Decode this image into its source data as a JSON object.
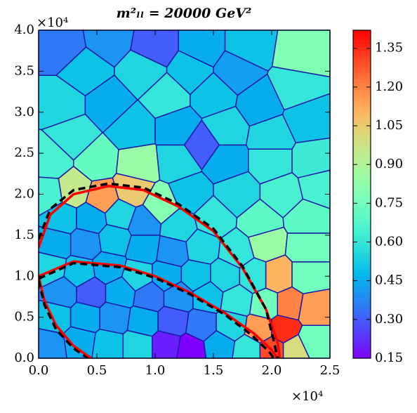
{
  "chart_data": {
    "type": "voronoi",
    "title": "m²ₗₗ = 20000 GeV²",
    "x_offset_text": "×10⁴",
    "y_offset_text": "×10⁴",
    "xlim": [
      0,
      25000
    ],
    "ylim": [
      0,
      40000
    ],
    "xticks": [
      {
        "value": 0,
        "label": "0.0"
      },
      {
        "value": 5000,
        "label": "0.5"
      },
      {
        "value": 10000,
        "label": "1.0"
      },
      {
        "value": 15000,
        "label": "1.5"
      },
      {
        "value": 20000,
        "label": "2.0"
      },
      {
        "value": 25000,
        "label": "2.5"
      }
    ],
    "yticks": [
      {
        "value": 0,
        "label": "0.0"
      },
      {
        "value": 5000,
        "label": "0.5"
      },
      {
        "value": 10000,
        "label": "1.0"
      },
      {
        "value": 15000,
        "label": "1.5"
      },
      {
        "value": 20000,
        "label": "2.0"
      },
      {
        "value": 25000,
        "label": "2.5"
      },
      {
        "value": 30000,
        "label": "3.0"
      },
      {
        "value": 35000,
        "label": "3.5"
      },
      {
        "value": 40000,
        "label": "4.0"
      }
    ],
    "colormap": "rainbow",
    "edge_color": "#1a1aa6",
    "clim": [
      0.15,
      1.42
    ],
    "cticks": [
      0.15,
      {
        "value": 0.3,
        "label": "0.30"
      },
      0.45,
      {
        "value": 0.6,
        "label": "0.60"
      },
      0.75,
      {
        "value": 0.9,
        "label": "0.90"
      },
      1.05,
      {
        "value": 1.2,
        "label": "1.20"
      },
      1.35
    ],
    "cells": {
      "x": [
        2000,
        6000,
        10000,
        14000,
        18000,
        22500,
        4000,
        9000,
        13000,
        17000,
        22000,
        2000,
        6000,
        11000,
        15000,
        19000,
        23000,
        3000,
        8000,
        12000,
        16000,
        20000,
        14000,
        1000,
        5000,
        8500,
        12000,
        16000,
        20000,
        23500,
        800,
        3000,
        5500,
        8000,
        10500,
        13000,
        17000,
        21000,
        24000,
        2000,
        4500,
        7000,
        9000,
        12000,
        15000,
        19000,
        23000,
        1500,
        4000,
        6500,
        9000,
        11500,
        14000,
        17000,
        19500,
        23000,
        1000,
        3500,
        6000,
        8500,
        11000,
        13500,
        16000,
        18500,
        20500,
        23000,
        2000,
        4500,
        7000,
        9500,
        12000,
        14500,
        17000,
        19500,
        21500,
        23500,
        1500,
        4000,
        6500,
        9000,
        11500,
        14000,
        16500,
        19000,
        21000,
        23500,
        1000,
        3500,
        6000,
        8500,
        11000,
        13000,
        15500,
        18000,
        20000,
        22000
      ],
      "y": [
        38000,
        39000,
        38000,
        38000,
        38000,
        37000,
        35000,
        35000,
        35000,
        35000,
        33000,
        31000,
        31000,
        32000,
        32000,
        31000,
        29000,
        27000,
        28000,
        28000,
        28000,
        27000,
        26000,
        24000,
        24000,
        23500,
        24000,
        24000,
        24000,
        24000,
        20000,
        20500,
        19500,
        20500,
        18500,
        20000,
        20000,
        20000,
        21000,
        17000,
        17000,
        17500,
        16500,
        16000,
        17000,
        16500,
        17000,
        14000,
        14000,
        14500,
        13500,
        13000,
        13500,
        13000,
        14000,
        13500,
        11000,
        10500,
        11000,
        10000,
        10000,
        10000,
        10000,
        10000,
        10000,
        10000,
        8000,
        8000,
        8000,
        7500,
        7500,
        7500,
        7000,
        6500,
        6500,
        6000,
        5000,
        5000,
        5000,
        4500,
        4500,
        4000,
        4000,
        3500,
        3500,
        2000,
        1500,
        2000,
        1500,
        1500,
        1500,
        1000,
        1500,
        1000,
        1000,
        1000
      ],
      "values": [
        0.35,
        0.4,
        0.3,
        0.45,
        0.5,
        0.78,
        0.5,
        0.55,
        0.5,
        0.42,
        0.6,
        0.55,
        0.45,
        0.6,
        0.5,
        0.45,
        0.5,
        0.6,
        0.5,
        0.45,
        0.55,
        0.55,
        0.3,
        0.65,
        0.72,
        0.85,
        0.55,
        0.45,
        0.6,
        0.62,
        0.65,
        0.95,
        1.15,
        1.05,
        0.8,
        0.5,
        0.55,
        0.65,
        0.65,
        0.5,
        0.45,
        0.55,
        0.4,
        0.55,
        0.6,
        0.7,
        0.7,
        0.45,
        0.4,
        0.5,
        0.45,
        0.4,
        0.55,
        0.6,
        0.85,
        0.75,
        0.55,
        0.5,
        0.45,
        0.55,
        0.45,
        0.5,
        0.55,
        0.6,
        1.1,
        0.75,
        0.4,
        0.3,
        0.45,
        0.35,
        0.4,
        0.5,
        0.6,
        0.75,
        1.2,
        1.15,
        0.5,
        0.45,
        0.4,
        0.45,
        0.3,
        0.35,
        0.55,
        1.15,
        1.35,
        0.75,
        0.4,
        0.45,
        0.5,
        0.55,
        0.2,
        0.15,
        0.45,
        0.6,
        1.3,
        1.0
      ]
    },
    "series": [
      {
        "color": "#ff0000",
        "style": "solid",
        "x": [
          0,
          1000,
          3000,
          6000,
          9000,
          12000,
          15000,
          17500,
          19500,
          20500,
          20700
        ],
        "y": [
          13500,
          17500,
          20000,
          21000,
          20500,
          18500,
          15500,
          11000,
          6000,
          2000,
          0
        ]
      },
      {
        "color": "#ff0000",
        "style": "solid",
        "x": [
          0,
          3000,
          7000,
          10000,
          13000,
          16000,
          18500,
          20000,
          20500
        ],
        "y": [
          10000,
          11800,
          11300,
          10000,
          8000,
          5500,
          3000,
          1000,
          0
        ]
      },
      {
        "color": "#ff0000",
        "style": "solid",
        "x": [
          0,
          500,
          1500,
          3000,
          4500
        ],
        "y": [
          10000,
          7000,
          4000,
          1500,
          0
        ]
      },
      {
        "color": "#000000",
        "style": "dashed",
        "x": [
          0,
          1000,
          3000,
          6000,
          9000,
          12000,
          15000,
          17500,
          19500,
          20200,
          20500
        ],
        "y": [
          14500,
          18200,
          20500,
          21300,
          20800,
          18800,
          15800,
          11200,
          6000,
          2000,
          0
        ]
      },
      {
        "color": "#000000",
        "style": "dashed",
        "x": [
          0,
          3000,
          7000,
          10000,
          13000,
          16000,
          18300,
          19700,
          20200
        ],
        "y": [
          9700,
          11600,
          11100,
          9800,
          7800,
          5300,
          2800,
          900,
          0
        ]
      },
      {
        "color": "#000000",
        "style": "dashed",
        "x": [
          0,
          500,
          1500,
          3000,
          4200
        ],
        "y": [
          9500,
          6500,
          3500,
          1200,
          0
        ]
      }
    ]
  }
}
